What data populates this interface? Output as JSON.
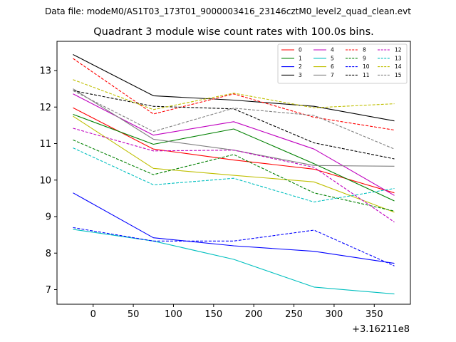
{
  "chart_data": {
    "type": "line",
    "suptitle": "Data file: modeM0/AS1T03_173T01_9000003416_23146cztM0_level2_quad_clean.evt",
    "title": "Quadrant 3 module wise count rates with 100.0s bins.",
    "xlabel": "",
    "ylabel": "",
    "x_offset_label": "+3.16211e8",
    "xlim": [
      -45,
      395
    ],
    "ylim": [
      6.6,
      13.8
    ],
    "xticks": [
      0,
      50,
      100,
      150,
      200,
      250,
      300,
      350
    ],
    "yticks": [
      7,
      8,
      9,
      10,
      11,
      12,
      13
    ],
    "legend_position": "top-right",
    "x": [
      -25,
      75,
      175,
      275,
      375
    ],
    "series": [
      {
        "name": "0",
        "color": "#ff0000",
        "dash": "solid",
        "values": [
          11.98,
          10.85,
          10.55,
          10.3,
          9.65
        ]
      },
      {
        "name": "1",
        "color": "#008000",
        "dash": "solid",
        "values": [
          11.8,
          10.98,
          11.4,
          10.45,
          9.43
        ]
      },
      {
        "name": "2",
        "color": "#0000ff",
        "dash": "solid",
        "values": [
          9.65,
          8.42,
          8.2,
          8.05,
          7.72
        ]
      },
      {
        "name": "3",
        "color": "#000000",
        "dash": "solid",
        "values": [
          13.44,
          12.31,
          12.19,
          12.02,
          11.62
        ]
      },
      {
        "name": "4",
        "color": "#bf00bf",
        "dash": "solid",
        "values": [
          12.36,
          11.23,
          11.6,
          10.85,
          9.58
        ]
      },
      {
        "name": "5",
        "color": "#00bfbf",
        "dash": "solid",
        "values": [
          8.65,
          8.33,
          7.83,
          7.07,
          6.88
        ]
      },
      {
        "name": "6",
        "color": "#bfbf00",
        "dash": "solid",
        "values": [
          11.75,
          10.32,
          10.13,
          9.95,
          9.12
        ]
      },
      {
        "name": "7",
        "color": "#808080",
        "dash": "solid",
        "values": [
          12.5,
          11.12,
          10.82,
          10.4,
          10.38
        ]
      },
      {
        "name": "8",
        "color": "#ff0000",
        "dash": "dashed",
        "values": [
          13.33,
          11.81,
          12.36,
          11.72,
          11.37
        ]
      },
      {
        "name": "9",
        "color": "#008000",
        "dash": "dashed",
        "values": [
          11.1,
          10.15,
          10.7,
          9.65,
          9.15
        ]
      },
      {
        "name": "10",
        "color": "#0000ff",
        "dash": "dashed",
        "values": [
          8.7,
          8.33,
          8.33,
          8.63,
          7.65
        ]
      },
      {
        "name": "11",
        "color": "#000000",
        "dash": "dashed",
        "values": [
          12.45,
          12.02,
          11.95,
          11.02,
          10.58
        ]
      },
      {
        "name": "12",
        "color": "#bf00bf",
        "dash": "dashed",
        "values": [
          11.42,
          10.8,
          10.82,
          10.35,
          8.85
        ]
      },
      {
        "name": "13",
        "color": "#00bfbf",
        "dash": "dashed",
        "values": [
          10.88,
          9.87,
          10.05,
          9.4,
          9.77
        ]
      },
      {
        "name": "14",
        "color": "#bfbf00",
        "dash": "dashed",
        "values": [
          12.75,
          11.93,
          12.38,
          11.98,
          12.09
        ]
      },
      {
        "name": "15",
        "color": "#808080",
        "dash": "dashed",
        "values": [
          12.45,
          11.33,
          11.97,
          11.77,
          10.85
        ]
      }
    ]
  }
}
